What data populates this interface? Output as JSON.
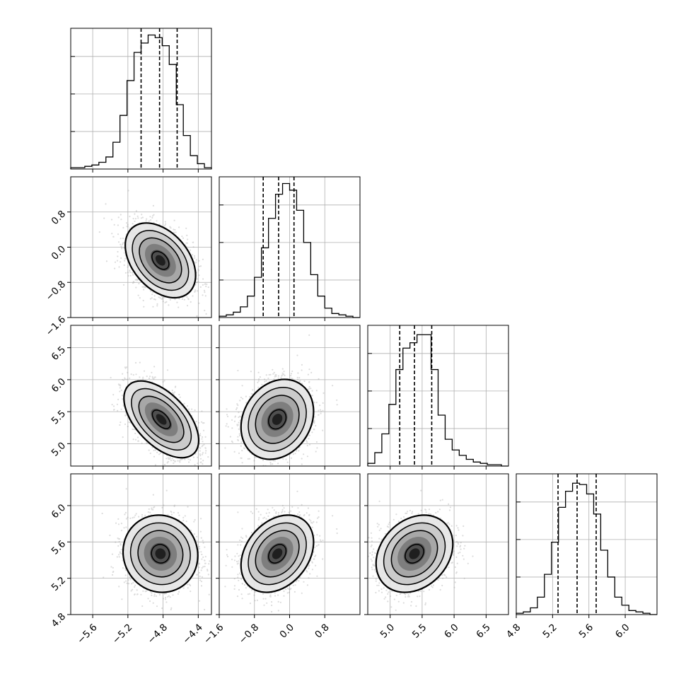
{
  "chart_data": {
    "type": "corner",
    "grid": true,
    "axis_labels": [
      "",
      "",
      "",
      ""
    ],
    "quantiles": [
      0.16,
      0.5,
      0.84
    ],
    "parameters": [
      {
        "range": [
          -5.85,
          -4.25
        ],
        "ticks": [
          -5.6,
          -5.2,
          -4.8,
          -4.4
        ],
        "tick_labels": [
          "−5.6",
          "−5.2",
          "−4.8",
          "−4.4"
        ],
        "quantile_values": [
          -5.05,
          -4.84,
          -4.64
        ],
        "histogram": [
          0.01,
          0.01,
          0.02,
          0.03,
          0.05,
          0.09,
          0.2,
          0.4,
          0.66,
          0.87,
          0.94,
          1.0,
          0.98,
          0.92,
          0.78,
          0.48,
          0.25,
          0.1,
          0.04,
          0.01
        ]
      },
      {
        "range": [
          -1.6,
          1.6
        ],
        "ticks": [
          -1.6,
          -0.8,
          0.0,
          0.8
        ],
        "tick_labels": [
          "−1.6",
          "−0.8",
          "0.0",
          "0.8"
        ],
        "quantile_values": [
          -0.6,
          -0.25,
          0.1
        ],
        "histogram": [
          0.01,
          0.02,
          0.04,
          0.08,
          0.16,
          0.3,
          0.52,
          0.74,
          0.92,
          1.0,
          0.95,
          0.8,
          0.56,
          0.32,
          0.16,
          0.07,
          0.03,
          0.02,
          0.01,
          0.0
        ]
      },
      {
        "range": [
          4.65,
          6.85
        ],
        "ticks": [
          5.0,
          5.5,
          6.0,
          6.5
        ],
        "tick_labels": [
          "5.0",
          "5.5",
          "6.0",
          "6.5"
        ],
        "ylim": [
          4.65,
          6.85
        ],
        "yticks": [
          5.0,
          5.5,
          6.0,
          6.5
        ],
        "ytick_labels": [
          "5.0",
          "5.5",
          "6.0",
          "6.5"
        ],
        "quantile_values": [
          5.15,
          5.38,
          5.65
        ],
        "histogram": [
          0.02,
          0.1,
          0.24,
          0.46,
          0.72,
          0.88,
          0.92,
          0.98,
          0.98,
          0.72,
          0.38,
          0.2,
          0.12,
          0.08,
          0.05,
          0.03,
          0.02,
          0.01,
          0.01,
          0.0
        ]
      },
      {
        "range": [
          4.8,
          6.35
        ],
        "ticks": [
          4.8,
          5.2,
          5.6,
          6.0
        ],
        "tick_labels": [
          "4.8",
          "5.2",
          "5.6",
          "6.0"
        ],
        "ylim": [
          4.8,
          6.35
        ],
        "yticks": [
          4.8,
          5.2,
          5.6,
          6.0
        ],
        "ytick_labels": [
          "4.8",
          "5.2",
          "5.6",
          "6.0"
        ],
        "quantile_values": [
          5.26,
          5.47,
          5.68
        ],
        "histogram": [
          0.01,
          0.02,
          0.05,
          0.13,
          0.3,
          0.54,
          0.8,
          0.92,
          0.98,
          0.97,
          0.9,
          0.75,
          0.48,
          0.28,
          0.13,
          0.07,
          0.03,
          0.02,
          0.01,
          0.0
        ]
      }
    ],
    "pairs": [
      {
        "row": 1,
        "col": 0,
        "center": [
          -4.83,
          -0.3
        ],
        "sigma": [
          0.16,
          0.34
        ],
        "rho": -0.4
      },
      {
        "row": 2,
        "col": 0,
        "center": [
          -4.82,
          5.38
        ],
        "sigma": [
          0.17,
          0.24
        ],
        "rho": -0.55
      },
      {
        "row": 2,
        "col": 1,
        "center": [
          -0.28,
          5.38
        ],
        "sigma": [
          0.33,
          0.25
        ],
        "rho": 0.2
      },
      {
        "row": 3,
        "col": 0,
        "center": [
          -4.83,
          5.47
        ],
        "sigma": [
          0.17,
          0.17
        ],
        "rho": -0.05
      },
      {
        "row": 3,
        "col": 1,
        "center": [
          -0.28,
          5.47
        ],
        "sigma": [
          0.33,
          0.17
        ],
        "rho": 0.3
      },
      {
        "row": 3,
        "col": 2,
        "center": [
          5.38,
          5.47
        ],
        "sigma": [
          0.24,
          0.17
        ],
        "rho": 0.25
      }
    ]
  }
}
